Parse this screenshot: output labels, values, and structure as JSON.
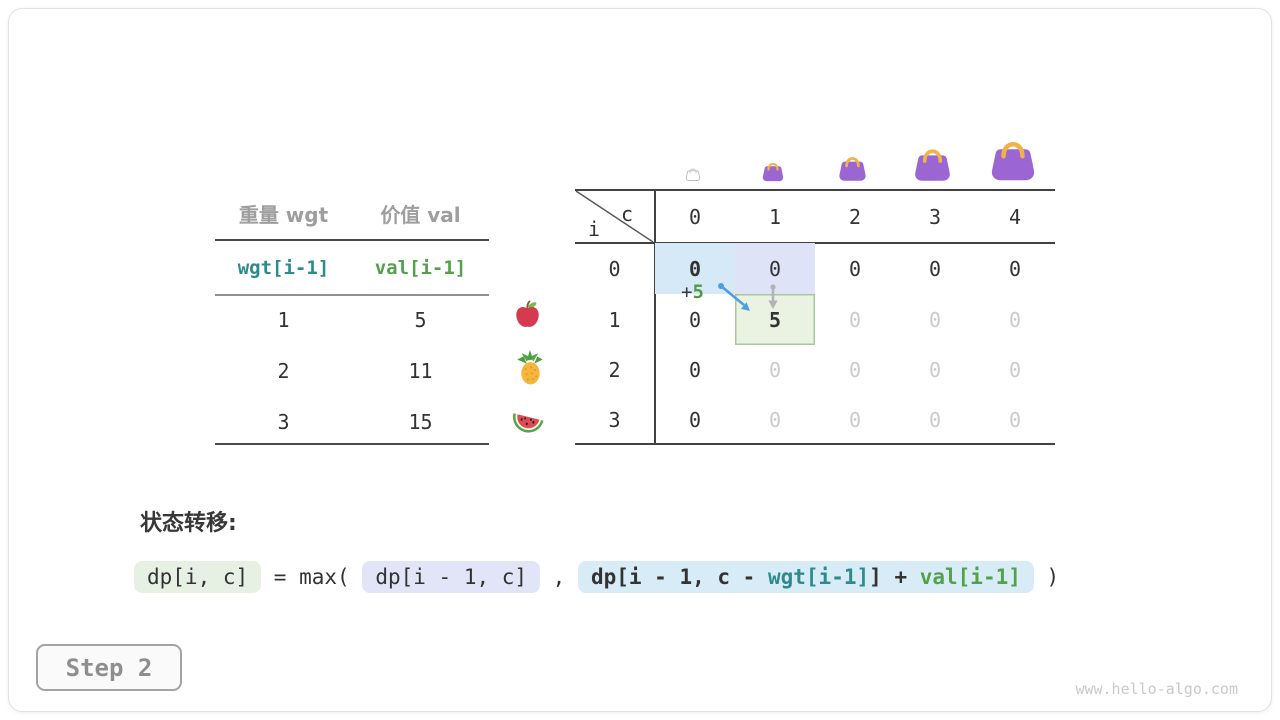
{
  "page": {
    "step_label": "Step 2",
    "watermark": "www.hello-algo.com"
  },
  "items_table": {
    "headers": {
      "weight": "重量 wgt",
      "value": "价值 val"
    },
    "index_row": {
      "weight": "wgt[i-1]",
      "value": "val[i-1]"
    },
    "rows": [
      {
        "weight": "1",
        "value": "5",
        "icon": "apple-icon"
      },
      {
        "weight": "2",
        "value": "11",
        "icon": "pineapple-icon"
      },
      {
        "weight": "3",
        "value": "15",
        "icon": "watermelon-icon"
      }
    ]
  },
  "dp_table": {
    "corner": {
      "col_var": "c",
      "row_var": "i"
    },
    "col_headers": [
      "0",
      "1",
      "2",
      "3",
      "4"
    ],
    "row_headers": [
      "0",
      "1",
      "2",
      "3"
    ],
    "bag_icons": [
      "bag-empty-icon",
      "bag-size-1-icon",
      "bag-size-2-icon",
      "bag-size-3-icon",
      "bag-size-4-icon"
    ],
    "cells": [
      [
        {
          "v": "0",
          "cls": "bold hl-blue"
        },
        {
          "v": "0",
          "cls": "hl-lavender"
        },
        {
          "v": "0"
        },
        {
          "v": "0"
        },
        {
          "v": "0"
        }
      ],
      [
        {
          "v": "0"
        },
        {
          "v": "5",
          "cls": "bold hl-green"
        },
        {
          "v": "0",
          "cls": "dim"
        },
        {
          "v": "0",
          "cls": "dim"
        },
        {
          "v": "0",
          "cls": "dim"
        }
      ],
      [
        {
          "v": "0"
        },
        {
          "v": "0",
          "cls": "dim"
        },
        {
          "v": "0",
          "cls": "dim"
        },
        {
          "v": "0",
          "cls": "dim"
        },
        {
          "v": "0",
          "cls": "dim"
        }
      ],
      [
        {
          "v": "0"
        },
        {
          "v": "0",
          "cls": "dim"
        },
        {
          "v": "0",
          "cls": "dim"
        },
        {
          "v": "0",
          "cls": "dim"
        },
        {
          "v": "0",
          "cls": "dim"
        }
      ]
    ],
    "annotation": {
      "plus": "+",
      "value": "5"
    }
  },
  "transition": {
    "label": "状态转移:",
    "lhs": "dp[i, c]",
    "equals": " = max( ",
    "option_keep": "dp[i - 1, c]",
    "separator": " , ",
    "option_take": {
      "prefix": "dp[i - 1, c - ",
      "wgt": "wgt[i-1]",
      "suffix": "]",
      "plus": " + ",
      "val": "val[i-1]"
    },
    "close": " )"
  },
  "colors": {
    "highlight_blue": "#d6e9f7",
    "highlight_lavender": "#dee3f7",
    "highlight_green_bg": "#eaf2e2",
    "highlight_green_border": "#a9c89b",
    "accent_teal": "#2e8b8b",
    "accent_green": "#53a14a",
    "arrow_blue": "#4d9fdf",
    "arrow_grey": "#b3b3b3",
    "bag_purple": "#9b66d2",
    "bag_handle": "#f1b24a",
    "text_dark": "#333333",
    "text_grey": "#9e9e9e",
    "text_dim": "#cbcbcb"
  }
}
